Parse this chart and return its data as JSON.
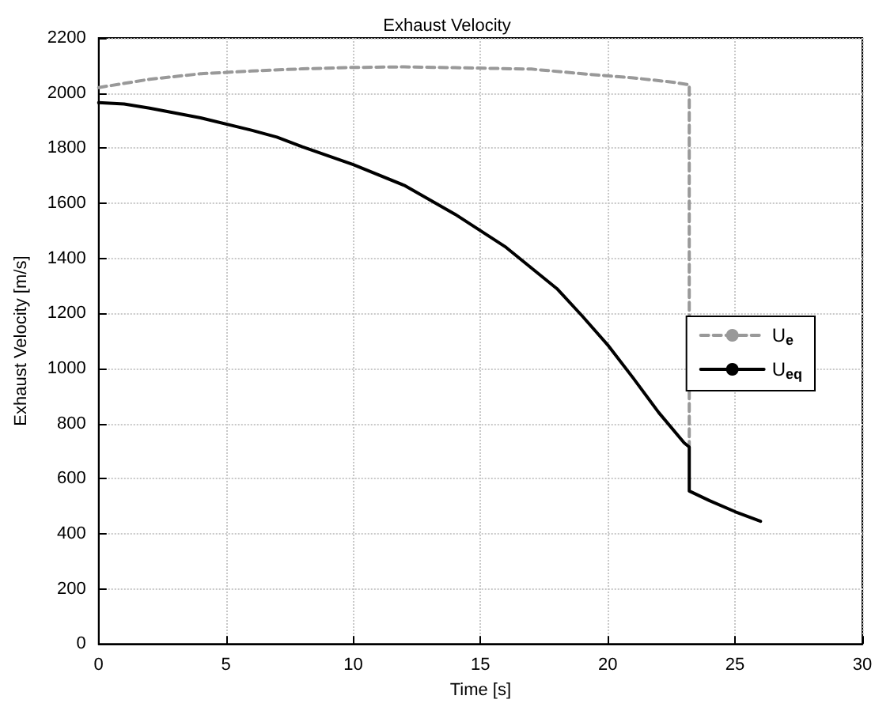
{
  "chart_data": {
    "type": "line",
    "title": "Exhaust Velocity",
    "xlabel": "Time [s]",
    "ylabel": "Exhaust Velocity [m/s]",
    "xlim": [
      0,
      30
    ],
    "xticks": [
      0,
      5,
      10,
      15,
      20,
      25,
      30
    ],
    "ylim": [
      0,
      2200
    ],
    "yticks": [
      0,
      200,
      400,
      600,
      800,
      1000,
      1200,
      1400,
      1600,
      1800,
      2000,
      2200
    ],
    "grid": true,
    "legend": "right",
    "marker": "none",
    "series": [
      {
        "name": "U$_{e}$",
        "color": "#999999",
        "line_style": "dashed",
        "x": [
          0,
          2,
          4,
          6,
          8,
          10,
          12,
          14,
          17,
          19,
          21,
          22.5,
          23.2,
          23.2
        ],
        "values": [
          2020,
          2050,
          2070,
          2080,
          2088,
          2093,
          2095,
          2092,
          2087,
          2070,
          2055,
          2040,
          2030,
          720
        ]
      },
      {
        "name": "U$_{eq}$",
        "color": "#000000",
        "line_style": "solid",
        "x": [
          0,
          1,
          2,
          4,
          6,
          7,
          8,
          10,
          12,
          14,
          16,
          18,
          19,
          20,
          21,
          22,
          23,
          23.2,
          23.2,
          24,
          25,
          26
        ],
        "values": [
          1965,
          1960,
          1945,
          1910,
          1865,
          1840,
          1805,
          1740,
          1665,
          1560,
          1440,
          1290,
          1190,
          1085,
          965,
          840,
          730,
          715,
          555,
          520,
          480,
          445
        ]
      }
    ]
  }
}
